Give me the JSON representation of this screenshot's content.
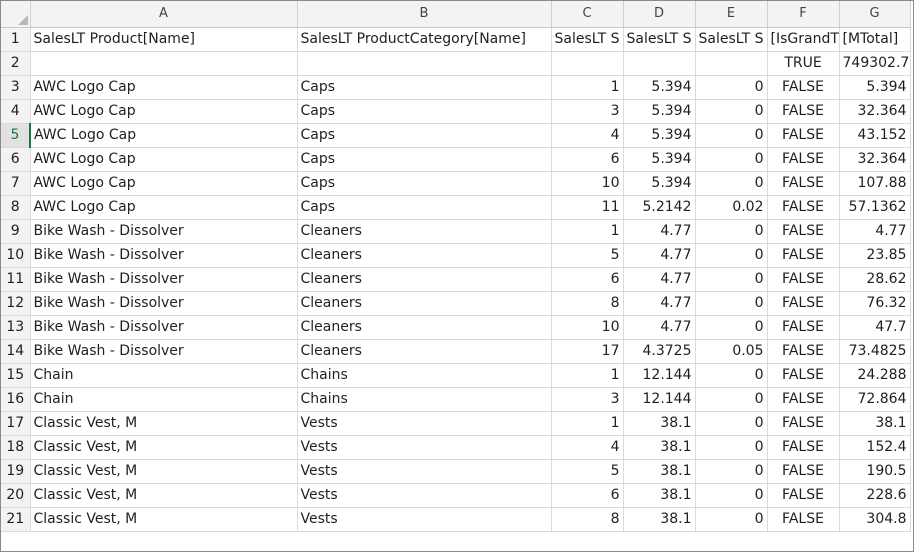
{
  "columns": [
    "A",
    "B",
    "C",
    "D",
    "E",
    "F",
    "G"
  ],
  "rows": [
    {
      "num": "1",
      "cells": [
        "SalesLT Product[Name]",
        "SalesLT ProductCategory[Name]",
        "SalesLT S",
        "SalesLT S",
        "SalesLT S",
        "[IsGrandT",
        "[MTotal]"
      ]
    },
    {
      "num": "2",
      "cells": [
        "",
        "",
        "",
        "",
        "",
        "TRUE",
        "749302.7"
      ]
    },
    {
      "num": "3",
      "cells": [
        "AWC Logo Cap",
        "Caps",
        "1",
        "5.394",
        "0",
        "FALSE",
        "5.394"
      ]
    },
    {
      "num": "4",
      "cells": [
        "AWC Logo Cap",
        "Caps",
        "3",
        "5.394",
        "0",
        "FALSE",
        "32.364"
      ]
    },
    {
      "num": "5",
      "cells": [
        "AWC Logo Cap",
        "Caps",
        "4",
        "5.394",
        "0",
        "FALSE",
        "43.152"
      ]
    },
    {
      "num": "6",
      "cells": [
        "AWC Logo Cap",
        "Caps",
        "6",
        "5.394",
        "0",
        "FALSE",
        "32.364"
      ]
    },
    {
      "num": "7",
      "cells": [
        "AWC Logo Cap",
        "Caps",
        "10",
        "5.394",
        "0",
        "FALSE",
        "107.88"
      ]
    },
    {
      "num": "8",
      "cells": [
        "AWC Logo Cap",
        "Caps",
        "11",
        "5.2142",
        "0.02",
        "FALSE",
        "57.1362"
      ]
    },
    {
      "num": "9",
      "cells": [
        "Bike Wash - Dissolver",
        "Cleaners",
        "1",
        "4.77",
        "0",
        "FALSE",
        "4.77"
      ]
    },
    {
      "num": "10",
      "cells": [
        "Bike Wash - Dissolver",
        "Cleaners",
        "5",
        "4.77",
        "0",
        "FALSE",
        "23.85"
      ]
    },
    {
      "num": "11",
      "cells": [
        "Bike Wash - Dissolver",
        "Cleaners",
        "6",
        "4.77",
        "0",
        "FALSE",
        "28.62"
      ]
    },
    {
      "num": "12",
      "cells": [
        "Bike Wash - Dissolver",
        "Cleaners",
        "8",
        "4.77",
        "0",
        "FALSE",
        "76.32"
      ]
    },
    {
      "num": "13",
      "cells": [
        "Bike Wash - Dissolver",
        "Cleaners",
        "10",
        "4.77",
        "0",
        "FALSE",
        "47.7"
      ]
    },
    {
      "num": "14",
      "cells": [
        "Bike Wash - Dissolver",
        "Cleaners",
        "17",
        "4.3725",
        "0.05",
        "FALSE",
        "73.4825"
      ]
    },
    {
      "num": "15",
      "cells": [
        "Chain",
        "Chains",
        "1",
        "12.144",
        "0",
        "FALSE",
        "24.288"
      ]
    },
    {
      "num": "16",
      "cells": [
        "Chain",
        "Chains",
        "3",
        "12.144",
        "0",
        "FALSE",
        "72.864"
      ]
    },
    {
      "num": "17",
      "cells": [
        "Classic Vest, M",
        "Vests",
        "1",
        "38.1",
        "0",
        "FALSE",
        "38.1"
      ]
    },
    {
      "num": "18",
      "cells": [
        "Classic Vest, M",
        "Vests",
        "4",
        "38.1",
        "0",
        "FALSE",
        "152.4"
      ]
    },
    {
      "num": "19",
      "cells": [
        "Classic Vest, M",
        "Vests",
        "5",
        "38.1",
        "0",
        "FALSE",
        "190.5"
      ]
    },
    {
      "num": "20",
      "cells": [
        "Classic Vest, M",
        "Vests",
        "6",
        "38.1",
        "0",
        "FALSE",
        "228.6"
      ]
    },
    {
      "num": "21",
      "cells": [
        "Classic Vest, M",
        "Vests",
        "8",
        "38.1",
        "0",
        "FALSE",
        "304.8"
      ]
    }
  ],
  "active_row": "5",
  "colors": {
    "accent": "#217346",
    "header_bg": "#f3f3f3",
    "gridline": "#dadada"
  }
}
